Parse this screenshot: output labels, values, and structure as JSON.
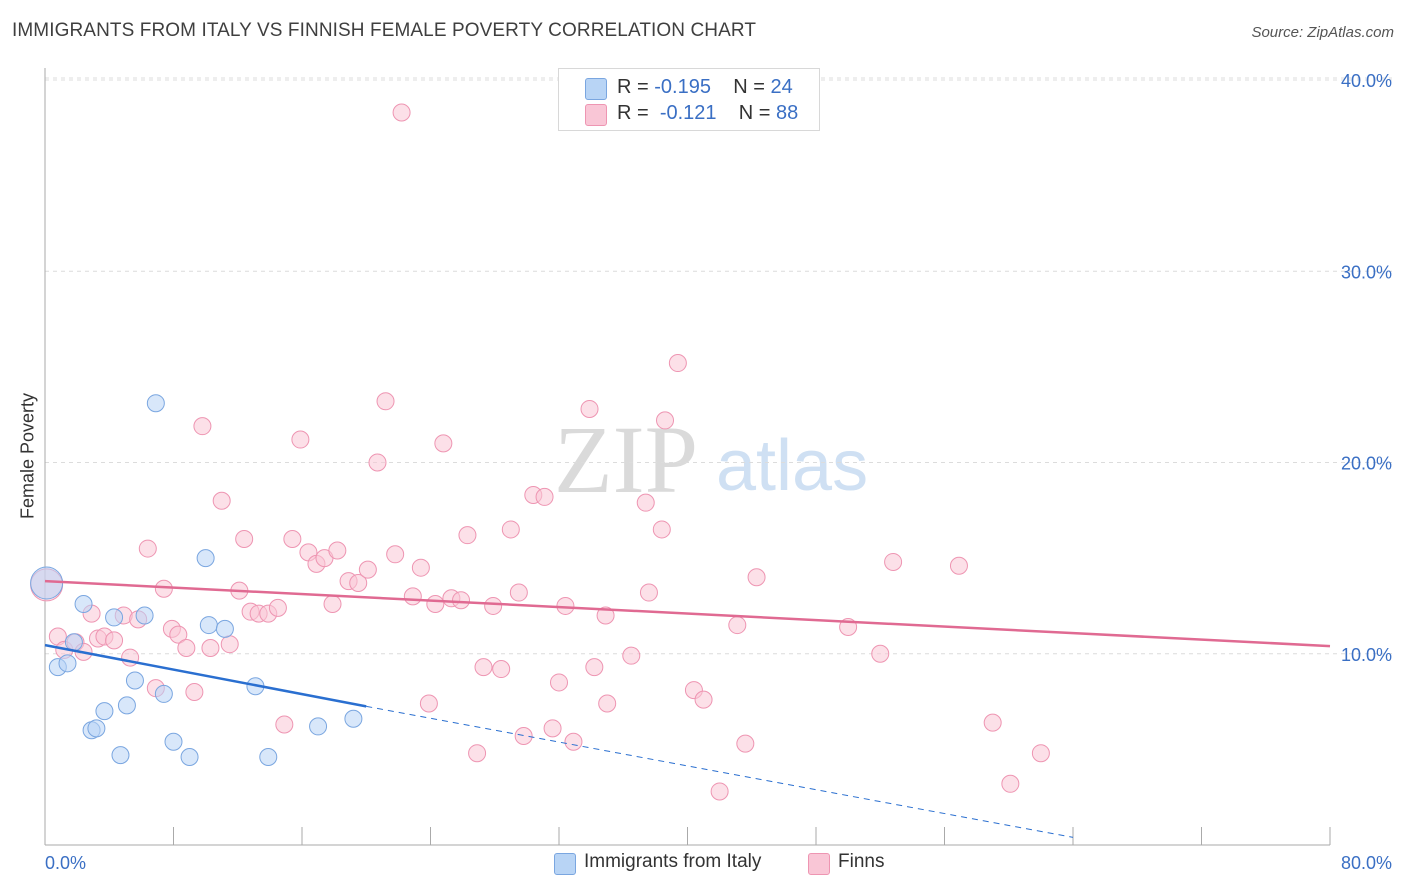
{
  "title": "IMMIGRANTS FROM ITALY VS FINNISH FEMALE POVERTY CORRELATION CHART",
  "source": "Source: ZipAtlas.com",
  "watermark": {
    "zip": "ZIP",
    "atlas": "atlas"
  },
  "legend": {
    "rows": [
      {
        "r_label": "R = ",
        "r_value": "-0.195",
        "n_label": "N = ",
        "n_value": "24",
        "color": "#b8d4f5",
        "border": "#7aa6e0"
      },
      {
        "r_label": "R = ",
        "r_value": "-0.121",
        "n_label": "N = ",
        "n_value": "88",
        "color": "#f9c6d6",
        "border": "#ee95b2"
      }
    ]
  },
  "bottom_legend": [
    {
      "label": "Immigrants from Italy",
      "color": "#b8d4f5",
      "border": "#7aa6e0"
    },
    {
      "label": "Finns",
      "color": "#f9c6d6",
      "border": "#ee95b2"
    }
  ],
  "chart_data": {
    "type": "scatter",
    "title": "IMMIGRANTS FROM ITALY VS FINNISH FEMALE POVERTY CORRELATION CHART",
    "xlabel": "",
    "ylabel": "Female Poverty",
    "xlim": [
      0,
      80
    ],
    "ylim": [
      0,
      40
    ],
    "x_tick_labels": [
      "0.0%",
      "80.0%"
    ],
    "y_ticks": [
      10,
      20,
      30,
      40
    ],
    "y_tick_labels": [
      "10.0%",
      "20.0%",
      "30.0%",
      "40.0%"
    ],
    "grid": true,
    "legend_position": "top-center",
    "series": [
      {
        "name": "Immigrants from Italy",
        "color": "#7aa6e0",
        "fill": "#b8d4f5",
        "trend_color": "#2a6fd0",
        "trend": {
          "x0": 0,
          "y0": 10.45,
          "x1": 20,
          "y1": 7.25,
          "dash_to_x": 64,
          "dash_to_y": 0.4
        },
        "points": [
          [
            0.1,
            13.7
          ],
          [
            0.8,
            9.3
          ],
          [
            1.4,
            9.5
          ],
          [
            1.8,
            10.6
          ],
          [
            2.4,
            12.6
          ],
          [
            2.9,
            6.0
          ],
          [
            3.2,
            6.1
          ],
          [
            3.7,
            7.0
          ],
          [
            4.3,
            11.9
          ],
          [
            4.7,
            4.7
          ],
          [
            5.1,
            7.3
          ],
          [
            5.6,
            8.6
          ],
          [
            6.2,
            12.0
          ],
          [
            6.9,
            23.1
          ],
          [
            7.4,
            7.9
          ],
          [
            8.0,
            5.4
          ],
          [
            9.0,
            4.6
          ],
          [
            10.0,
            15.0
          ],
          [
            10.2,
            11.5
          ],
          [
            11.2,
            11.3
          ],
          [
            13.1,
            8.3
          ],
          [
            13.9,
            4.6
          ],
          [
            17.0,
            6.2
          ],
          [
            19.2,
            6.6
          ]
        ]
      },
      {
        "name": "Finns",
        "color": "#ee95b2",
        "fill": "#f9c6d6",
        "trend_color": "#e06a92",
        "trend": {
          "x0": 0,
          "y0": 13.8,
          "x1": 80,
          "y1": 10.4
        },
        "points": [
          [
            0.1,
            13.6
          ],
          [
            0.8,
            10.9
          ],
          [
            1.2,
            10.2
          ],
          [
            1.9,
            10.6
          ],
          [
            2.4,
            10.1
          ],
          [
            2.9,
            12.1
          ],
          [
            3.3,
            10.8
          ],
          [
            3.7,
            10.9
          ],
          [
            4.3,
            10.7
          ],
          [
            4.9,
            12.0
          ],
          [
            5.3,
            9.8
          ],
          [
            5.8,
            11.8
          ],
          [
            6.4,
            15.5
          ],
          [
            6.9,
            8.2
          ],
          [
            7.4,
            13.4
          ],
          [
            7.9,
            11.3
          ],
          [
            8.3,
            11.0
          ],
          [
            8.8,
            10.3
          ],
          [
            9.3,
            8.0
          ],
          [
            9.8,
            21.9
          ],
          [
            10.3,
            10.3
          ],
          [
            11.0,
            18.0
          ],
          [
            11.5,
            10.5
          ],
          [
            12.1,
            13.3
          ],
          [
            12.4,
            16.0
          ],
          [
            12.8,
            12.2
          ],
          [
            13.3,
            12.1
          ],
          [
            13.9,
            12.1
          ],
          [
            14.5,
            12.4
          ],
          [
            14.9,
            6.3
          ],
          [
            15.4,
            16.0
          ],
          [
            15.9,
            21.2
          ],
          [
            16.4,
            15.3
          ],
          [
            16.9,
            14.7
          ],
          [
            17.4,
            15.0
          ],
          [
            17.9,
            12.6
          ],
          [
            18.2,
            15.4
          ],
          [
            18.9,
            13.8
          ],
          [
            19.5,
            13.7
          ],
          [
            20.1,
            14.4
          ],
          [
            20.7,
            20.0
          ],
          [
            21.2,
            23.2
          ],
          [
            21.8,
            15.2
          ],
          [
            22.2,
            38.3
          ],
          [
            22.9,
            13.0
          ],
          [
            23.4,
            14.5
          ],
          [
            23.9,
            7.4
          ],
          [
            24.3,
            12.6
          ],
          [
            24.8,
            21.0
          ],
          [
            25.3,
            12.9
          ],
          [
            25.9,
            12.8
          ],
          [
            26.3,
            16.2
          ],
          [
            26.9,
            4.8
          ],
          [
            27.3,
            9.3
          ],
          [
            27.9,
            12.5
          ],
          [
            28.4,
            9.2
          ],
          [
            29.0,
            16.5
          ],
          [
            29.5,
            13.2
          ],
          [
            29.8,
            5.7
          ],
          [
            30.4,
            18.3
          ],
          [
            31.1,
            18.2
          ],
          [
            31.6,
            6.1
          ],
          [
            32.0,
            8.5
          ],
          [
            32.4,
            12.5
          ],
          [
            32.9,
            5.4
          ],
          [
            33.9,
            22.8
          ],
          [
            34.2,
            9.3
          ],
          [
            34.9,
            12.0
          ],
          [
            35.0,
            7.4
          ],
          [
            36.5,
            9.9
          ],
          [
            37.4,
            17.9
          ],
          [
            37.6,
            13.2
          ],
          [
            38.4,
            16.5
          ],
          [
            38.6,
            22.2
          ],
          [
            39.4,
            25.2
          ],
          [
            40.4,
            8.1
          ],
          [
            41.0,
            7.6
          ],
          [
            42.0,
            2.8
          ],
          [
            43.1,
            11.5
          ],
          [
            43.6,
            5.3
          ],
          [
            44.3,
            14.0
          ],
          [
            50.0,
            11.4
          ],
          [
            52.0,
            10.0
          ],
          [
            52.8,
            14.8
          ],
          [
            56.9,
            14.6
          ],
          [
            59.0,
            6.4
          ],
          [
            60.1,
            3.2
          ],
          [
            62.0,
            4.8
          ]
        ]
      }
    ]
  }
}
